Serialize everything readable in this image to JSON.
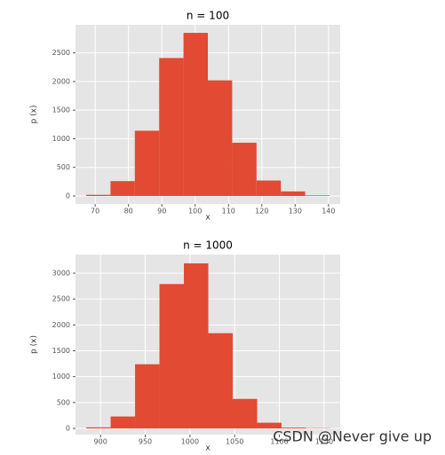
{
  "chart_data": [
    {
      "type": "histogram",
      "title": "n = 100",
      "xlabel": "x",
      "ylabel": "p (x)",
      "color": "#e24a33",
      "bins": [
        67.3,
        74.6,
        81.9,
        89.2,
        96.5,
        103.8,
        111.1,
        118.4,
        125.7,
        133.0,
        140.3
      ],
      "values": [
        20,
        260,
        1140,
        2410,
        2850,
        2020,
        930,
        270,
        80,
        10
      ],
      "xlim": [
        64.1,
        143.5
      ],
      "xticks": [
        70,
        80,
        90,
        100,
        110,
        120,
        130,
        140
      ],
      "ylim": [
        -140,
        2990
      ],
      "yticks": [
        0,
        500,
        1000,
        1500,
        2000,
        2500
      ],
      "grid": true
    },
    {
      "type": "histogram",
      "title": "n = 1000",
      "xlabel": "x",
      "ylabel": "p (x)",
      "color": "#e24a33",
      "bins": [
        884,
        911.3,
        938.6,
        965.9,
        993.2,
        1020.5,
        1047.8,
        1075.1,
        1102.4,
        1129.7,
        1157
      ],
      "values": [
        20,
        230,
        1240,
        2790,
        3190,
        1840,
        570,
        110,
        15,
        5
      ],
      "xlim": [
        872,
        1168
      ],
      "xticks": [
        900,
        950,
        1000,
        1050,
        1100,
        1150
      ],
      "ylim": [
        -120,
        3360
      ],
      "yticks": [
        0,
        500,
        1000,
        1500,
        2000,
        2500,
        3000
      ],
      "grid": true
    }
  ],
  "watermark": "CSDN @Never give up"
}
